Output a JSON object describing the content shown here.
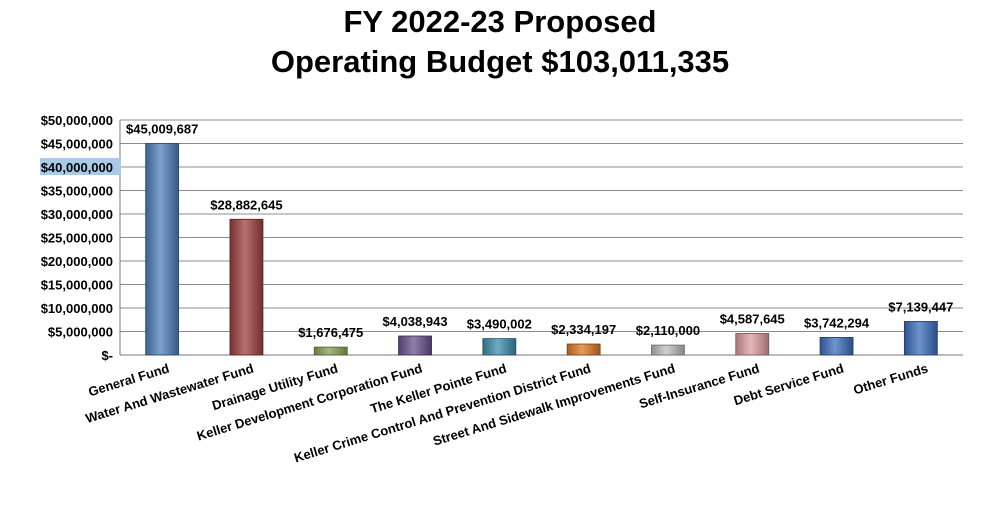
{
  "chart_data": {
    "type": "bar",
    "title": "FY 2022-23 Proposed",
    "subtitle": "Operating Budget $103,011,335",
    "categories": [
      "General Fund",
      "Water And Wastewater Fund",
      "Drainage Utility Fund",
      "Keller Development Corporation Fund",
      "The Keller Pointe Fund",
      "Keller Crime Control And Prevention District Fund",
      "Street And Sidewalk Improvements Fund",
      "Self-Insurance Fund",
      "Debt Service Fund",
      "Other Funds"
    ],
    "values": [
      45009687,
      28882645,
      1676475,
      4038943,
      3490002,
      2334197,
      2110000,
      4587645,
      3742294,
      7139447
    ],
    "data_labels": [
      "$45,009,687",
      "$28,882,645",
      "$1,676,475",
      "$4,038,943",
      "$3,490,002",
      "$2,334,197",
      "$2,110,000",
      "$4,587,645",
      "$3,742,294",
      "$7,139,447"
    ],
    "colors": [
      "#4f81bd",
      "#a0413e",
      "#8aa456",
      "#6a5290",
      "#3f8fae",
      "#e07a27",
      "#c0c0c0",
      "#dd9fa0",
      "#3f6fbf",
      "#3f6fbf"
    ],
    "ylim": [
      0,
      50000000
    ],
    "yticks": [
      0,
      5000000,
      10000000,
      15000000,
      20000000,
      25000000,
      30000000,
      35000000,
      40000000,
      45000000,
      50000000
    ],
    "ytick_labels": [
      "$-",
      "$5,000,000",
      "$10,000,000",
      "$15,000,000",
      "$20,000,000",
      "$25,000,000",
      "$30,000,000",
      "$35,000,000",
      "$40,000,000",
      "$45,000,000",
      "$50,000,000"
    ],
    "highlighted_tick": "$40,000,000",
    "highlight_color": "#a9cbe8",
    "grid": true,
    "legend": "none"
  }
}
